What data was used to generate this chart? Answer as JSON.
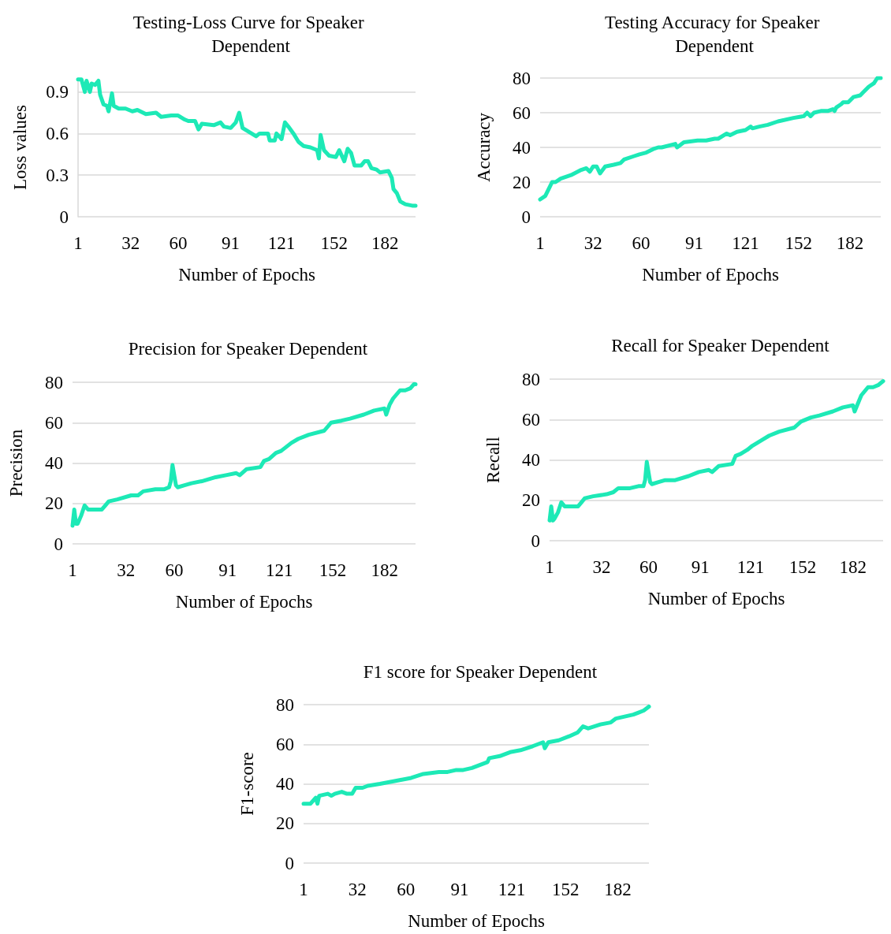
{
  "chart_data": [
    {
      "type": "line",
      "title": "Testing-Loss Curve for Speaker Dependent",
      "xlabel": "Number of Epochs",
      "ylabel": "Loss values",
      "xlim": [
        1,
        200
      ],
      "xticks": [
        1,
        32,
        60,
        91,
        121,
        152,
        182
      ],
      "ylim": [
        0,
        1
      ],
      "yticks": [
        0,
        0.3,
        0.6,
        0.9
      ],
      "grid": "y",
      "marker": "none",
      "line_style": "solid",
      "series": [
        {
          "color": "#1de9b6",
          "x": [
            1,
            3,
            5,
            6,
            8,
            9,
            11,
            13,
            14,
            16,
            18,
            19,
            21,
            22,
            25,
            29,
            33,
            36,
            41,
            47,
            50,
            56,
            60,
            64,
            66,
            70,
            72,
            74,
            81,
            85,
            87,
            91,
            94,
            96,
            98,
            102,
            106,
            108,
            113,
            114,
            117,
            118,
            121,
            123,
            125,
            128,
            131,
            134,
            138,
            142,
            143,
            144,
            146,
            149,
            153,
            155,
            158,
            160,
            162,
            164,
            168,
            170,
            172,
            174,
            177,
            179,
            184,
            186,
            187,
            189,
            191,
            194,
            198,
            200
          ],
          "values": [
            0.99,
            0.99,
            0.9,
            0.98,
            0.9,
            0.96,
            0.95,
            0.98,
            0.88,
            0.81,
            0.8,
            0.76,
            0.89,
            0.8,
            0.78,
            0.78,
            0.76,
            0.77,
            0.74,
            0.75,
            0.72,
            0.73,
            0.73,
            0.7,
            0.69,
            0.69,
            0.63,
            0.67,
            0.66,
            0.68,
            0.65,
            0.64,
            0.68,
            0.75,
            0.64,
            0.61,
            0.58,
            0.6,
            0.6,
            0.55,
            0.55,
            0.6,
            0.56,
            0.68,
            0.65,
            0.6,
            0.54,
            0.51,
            0.5,
            0.48,
            0.42,
            0.59,
            0.48,
            0.44,
            0.43,
            0.48,
            0.4,
            0.49,
            0.46,
            0.37,
            0.37,
            0.4,
            0.4,
            0.35,
            0.34,
            0.32,
            0.33,
            0.28,
            0.2,
            0.17,
            0.11,
            0.09,
            0.08,
            0.08
          ]
        }
      ]
    },
    {
      "type": "line",
      "title": "Testing Accuracy for Speaker Dependent",
      "xlabel": "Number of Epochs",
      "ylabel": "Accuracy",
      "xlim": [
        1,
        200
      ],
      "xticks": [
        1,
        32,
        60,
        91,
        121,
        152,
        182
      ],
      "ylim": [
        0,
        80
      ],
      "yticks": [
        0,
        20,
        40,
        60,
        80
      ],
      "grid": "y",
      "marker": "none",
      "line_style": "solid",
      "series": [
        {
          "color": "#1de9b6",
          "x": [
            1,
            4,
            6,
            8,
            10,
            13,
            19,
            21,
            25,
            28,
            30,
            32,
            34,
            36,
            39,
            44,
            48,
            50,
            56,
            59,
            63,
            67,
            70,
            72,
            80,
            81,
            85,
            93,
            98,
            103,
            105,
            110,
            112,
            116,
            121,
            124,
            125,
            129,
            134,
            140,
            149,
            155,
            157,
            159,
            161,
            165,
            169,
            172,
            173,
            174,
            177,
            178,
            181,
            184,
            188,
            190,
            193,
            196,
            198,
            200
          ],
          "values": [
            10,
            12,
            16,
            20,
            20,
            22,
            24,
            25,
            27,
            28,
            26,
            29,
            29,
            25,
            29,
            30,
            31,
            33,
            35,
            36,
            37,
            39,
            40,
            40,
            42,
            40,
            43,
            44,
            44,
            45,
            45,
            48,
            47,
            49,
            50,
            52,
            51,
            52,
            53,
            55,
            57,
            58,
            60,
            58,
            60,
            61,
            61,
            62,
            61,
            63,
            65,
            66,
            66,
            69,
            70,
            72,
            75,
            77,
            80,
            80
          ]
        }
      ]
    },
    {
      "type": "line",
      "title": "Precision for Speaker Dependent",
      "xlabel": "Number of Epochs",
      "ylabel": "Precision",
      "xlim": [
        1,
        200
      ],
      "xticks": [
        1,
        32,
        60,
        91,
        121,
        152,
        182
      ],
      "ylim": [
        0,
        80
      ],
      "yticks": [
        0,
        20,
        40,
        60,
        80
      ],
      "grid": "y",
      "marker": "none",
      "line_style": "solid",
      "series": [
        {
          "color": "#1de9b6",
          "x": [
            1,
            2,
            3,
            4,
            6,
            8,
            10,
            13,
            18,
            20,
            22,
            27,
            35,
            39,
            42,
            49,
            54,
            57,
            58,
            59,
            61,
            62,
            66,
            70,
            76,
            84,
            90,
            96,
            98,
            102,
            110,
            112,
            115,
            119,
            122,
            128,
            132,
            138,
            147,
            151,
            157,
            162,
            170,
            176,
            182,
            183,
            185,
            187,
            191,
            194,
            197,
            199,
            200
          ],
          "values": [
            9,
            17,
            10,
            10,
            14,
            19,
            17,
            17,
            17,
            19,
            21,
            22,
            24,
            24,
            26,
            27,
            27,
            28,
            31,
            39,
            29,
            28,
            29,
            30,
            31,
            33,
            34,
            35,
            34,
            37,
            38,
            41,
            42,
            45,
            46,
            50,
            52,
            54,
            56,
            60,
            61,
            62,
            64,
            66,
            67,
            64,
            69,
            72,
            76,
            76,
            77,
            79,
            79
          ]
        }
      ]
    },
    {
      "type": "line",
      "title": "Recall for Speaker Dependent",
      "xlabel": "Number of Epochs",
      "ylabel": "Recall",
      "xlim": [
        1,
        200
      ],
      "xticks": [
        1,
        32,
        60,
        91,
        121,
        152,
        182
      ],
      "ylim": [
        0,
        80
      ],
      "yticks": [
        0,
        20,
        40,
        60,
        80
      ],
      "grid": "y",
      "marker": "none",
      "line_style": "solid",
      "series": [
        {
          "color": "#1de9b6",
          "x": [
            1,
            2,
            3,
            4,
            6,
            8,
            10,
            13,
            18,
            20,
            22,
            27,
            35,
            39,
            42,
            49,
            54,
            57,
            58,
            59,
            61,
            62,
            66,
            70,
            76,
            84,
            90,
            96,
            98,
            102,
            110,
            112,
            115,
            119,
            122,
            128,
            132,
            138,
            147,
            151,
            157,
            162,
            170,
            176,
            182,
            183,
            185,
            187,
            191,
            194,
            197,
            200
          ],
          "values": [
            10,
            17,
            10,
            11,
            14,
            19,
            17,
            17,
            17,
            19,
            21,
            22,
            23,
            24,
            26,
            26,
            27,
            27,
            30,
            39,
            29,
            28,
            29,
            30,
            30,
            32,
            34,
            35,
            34,
            37,
            38,
            42,
            43,
            45,
            47,
            50,
            52,
            54,
            56,
            59,
            61,
            62,
            64,
            66,
            67,
            64,
            68,
            72,
            76,
            76,
            77,
            79
          ]
        }
      ]
    },
    {
      "type": "line",
      "title": "F1 score for Speaker Dependent",
      "xlabel": "Number of Epochs",
      "ylabel": "F1-score",
      "xlim": [
        1,
        200
      ],
      "xticks": [
        1,
        32,
        60,
        91,
        121,
        152,
        182
      ],
      "ylim": [
        0,
        80
      ],
      "yticks": [
        0,
        20,
        40,
        60,
        80
      ],
      "grid": "y",
      "marker": "none",
      "line_style": "solid",
      "series": [
        {
          "color": "#1de9b6",
          "x": [
            1,
            5,
            8,
            9,
            10,
            15,
            17,
            19,
            23,
            26,
            29,
            31,
            35,
            38,
            45,
            51,
            57,
            63,
            70,
            79,
            84,
            89,
            93,
            98,
            104,
            107,
            108,
            114,
            120,
            126,
            133,
            139,
            140,
            142,
            148,
            154,
            159,
            162,
            165,
            172,
            178,
            181,
            186,
            191,
            194,
            197,
            200
          ],
          "values": [
            30,
            30,
            33,
            30,
            34,
            35,
            34,
            35,
            36,
            35,
            35,
            38,
            38,
            39,
            40,
            41,
            42,
            43,
            45,
            46,
            46,
            47,
            47,
            48,
            50,
            51,
            53,
            54,
            56,
            57,
            59,
            61,
            58,
            61,
            62,
            64,
            66,
            69,
            68,
            70,
            71,
            73,
            74,
            75,
            76,
            77,
            79
          ]
        }
      ]
    }
  ]
}
